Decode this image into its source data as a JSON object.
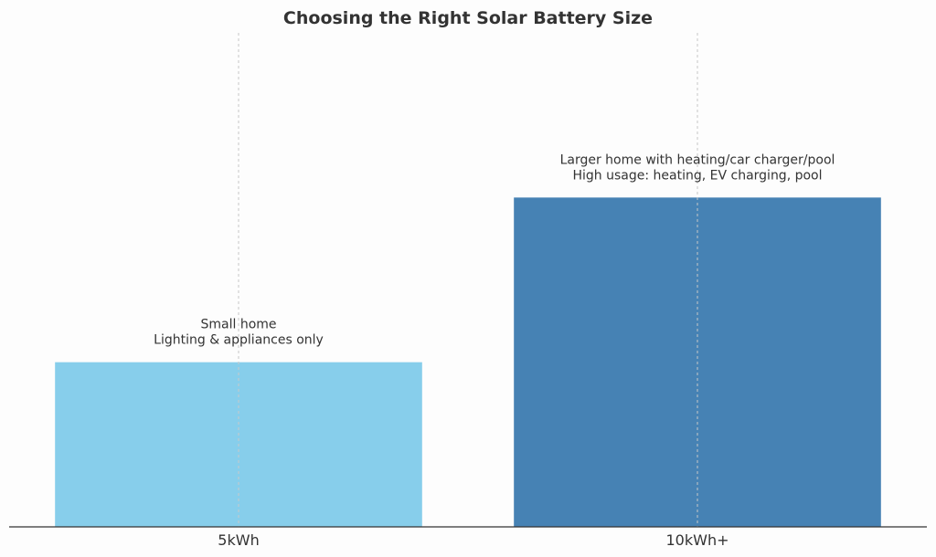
{
  "chart_data": {
    "type": "bar",
    "title": "Choosing the Right Solar Battery Size",
    "categories": [
      "5kWh",
      "10kWh+"
    ],
    "values": [
      5,
      10
    ],
    "colors": [
      "#87ceeb",
      "#4682b4"
    ],
    "annotations": [
      [
        "Small home",
        "Lighting & appliances only"
      ],
      [
        "Larger home with heating/car charger/pool",
        "High usage: heating, EV charging, pool"
      ]
    ],
    "ylim": [
      0,
      15
    ],
    "grid": "vertical dashed",
    "xlabel": "",
    "ylabel": ""
  }
}
